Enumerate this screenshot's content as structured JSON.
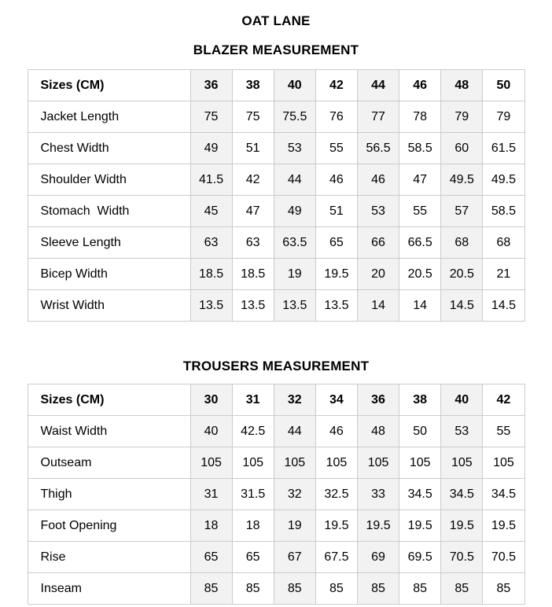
{
  "page": {
    "title": "OAT LANE"
  },
  "colors": {
    "background": "#ffffff",
    "text": "#000000",
    "table_border": "#cccccc",
    "shaded_column_bg": "#f2f2f2"
  },
  "blazer": {
    "section_title": "BLAZER MEASUREMENT",
    "header_label": "Sizes (CM)",
    "sizes": [
      "36",
      "38",
      "40",
      "42",
      "44",
      "46",
      "48",
      "50"
    ],
    "rows": [
      {
        "label": "Jacket Length",
        "values": [
          "75",
          "75",
          "75.5",
          "76",
          "77",
          "78",
          "79",
          "79"
        ]
      },
      {
        "label": "Chest Width",
        "values": [
          "49",
          "51",
          "53",
          "55",
          "56.5",
          "58.5",
          "60",
          "61.5"
        ]
      },
      {
        "label": "Shoulder Width",
        "values": [
          "41.5",
          "42",
          "44",
          "46",
          "46",
          "47",
          "49.5",
          "49.5"
        ]
      },
      {
        "label": "Stomach  Width",
        "values": [
          "45",
          "47",
          "49",
          "51",
          "53",
          "55",
          "57",
          "58.5"
        ]
      },
      {
        "label": "Sleeve Length",
        "values": [
          "63",
          "63",
          "63.5",
          "65",
          "66",
          "66.5",
          "68",
          "68"
        ]
      },
      {
        "label": "Bicep Width",
        "values": [
          "18.5",
          "18.5",
          "19",
          "19.5",
          "20",
          "20.5",
          "20.5",
          "21"
        ]
      },
      {
        "label": "Wrist Width",
        "values": [
          "13.5",
          "13.5",
          "13.5",
          "13.5",
          "14",
          "14",
          "14.5",
          "14.5"
        ]
      }
    ]
  },
  "trousers": {
    "section_title": "TROUSERS MEASUREMENT",
    "header_label": "Sizes (CM)",
    "sizes": [
      "30",
      "31",
      "32",
      "34",
      "36",
      "38",
      "40",
      "42"
    ],
    "rows": [
      {
        "label": "Waist Width",
        "values": [
          "40",
          "42.5",
          "44",
          "46",
          "48",
          "50",
          "53",
          "55"
        ]
      },
      {
        "label": "Outseam",
        "values": [
          "105",
          "105",
          "105",
          "105",
          "105",
          "105",
          "105",
          "105"
        ]
      },
      {
        "label": "Thigh",
        "values": [
          "31",
          "31.5",
          "32",
          "32.5",
          "33",
          "34.5",
          "34.5",
          "34.5"
        ]
      },
      {
        "label": "Foot Opening",
        "values": [
          "18",
          "18",
          "19",
          "19.5",
          "19.5",
          "19.5",
          "19.5",
          "19.5"
        ]
      },
      {
        "label": "Rise",
        "values": [
          "65",
          "65",
          "67",
          "67.5",
          "69",
          "69.5",
          "70.5",
          "70.5"
        ]
      },
      {
        "label": "Inseam",
        "values": [
          "85",
          "85",
          "85",
          "85",
          "85",
          "85",
          "85",
          "85"
        ]
      }
    ]
  }
}
